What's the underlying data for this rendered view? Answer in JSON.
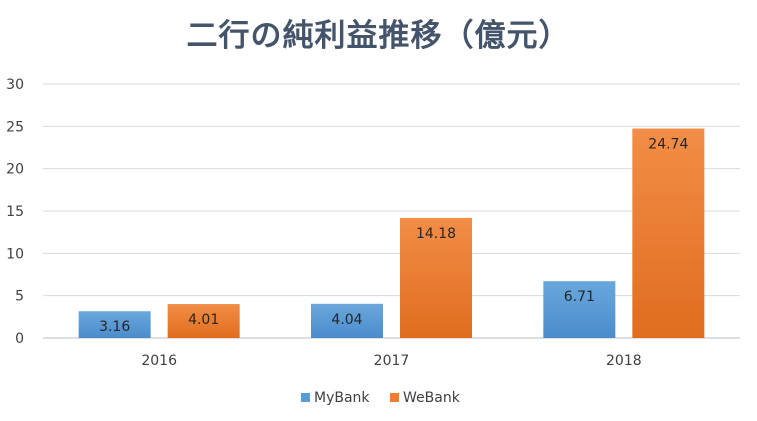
{
  "chart_data": {
    "type": "bar",
    "title": "二行の純利益推移（億元）",
    "categories": [
      "2016",
      "2017",
      "2018"
    ],
    "series": [
      {
        "name": "MyBank",
        "values": [
          3.16,
          4.04,
          6.71
        ],
        "color": "#5b9bd5"
      },
      {
        "name": "WeBank",
        "values": [
          4.01,
          14.18,
          24.74
        ],
        "color": "#ed7d31"
      }
    ],
    "data_labels": [
      [
        "3.16",
        "4.04",
        "6.71"
      ],
      [
        "4.01",
        "14.18",
        "24.74"
      ]
    ],
    "y_ticks": [
      "0",
      "5",
      "10",
      "15",
      "20",
      "25",
      "30"
    ],
    "ylim": [
      0,
      30
    ],
    "grid": true,
    "legend_position": "bottom"
  }
}
